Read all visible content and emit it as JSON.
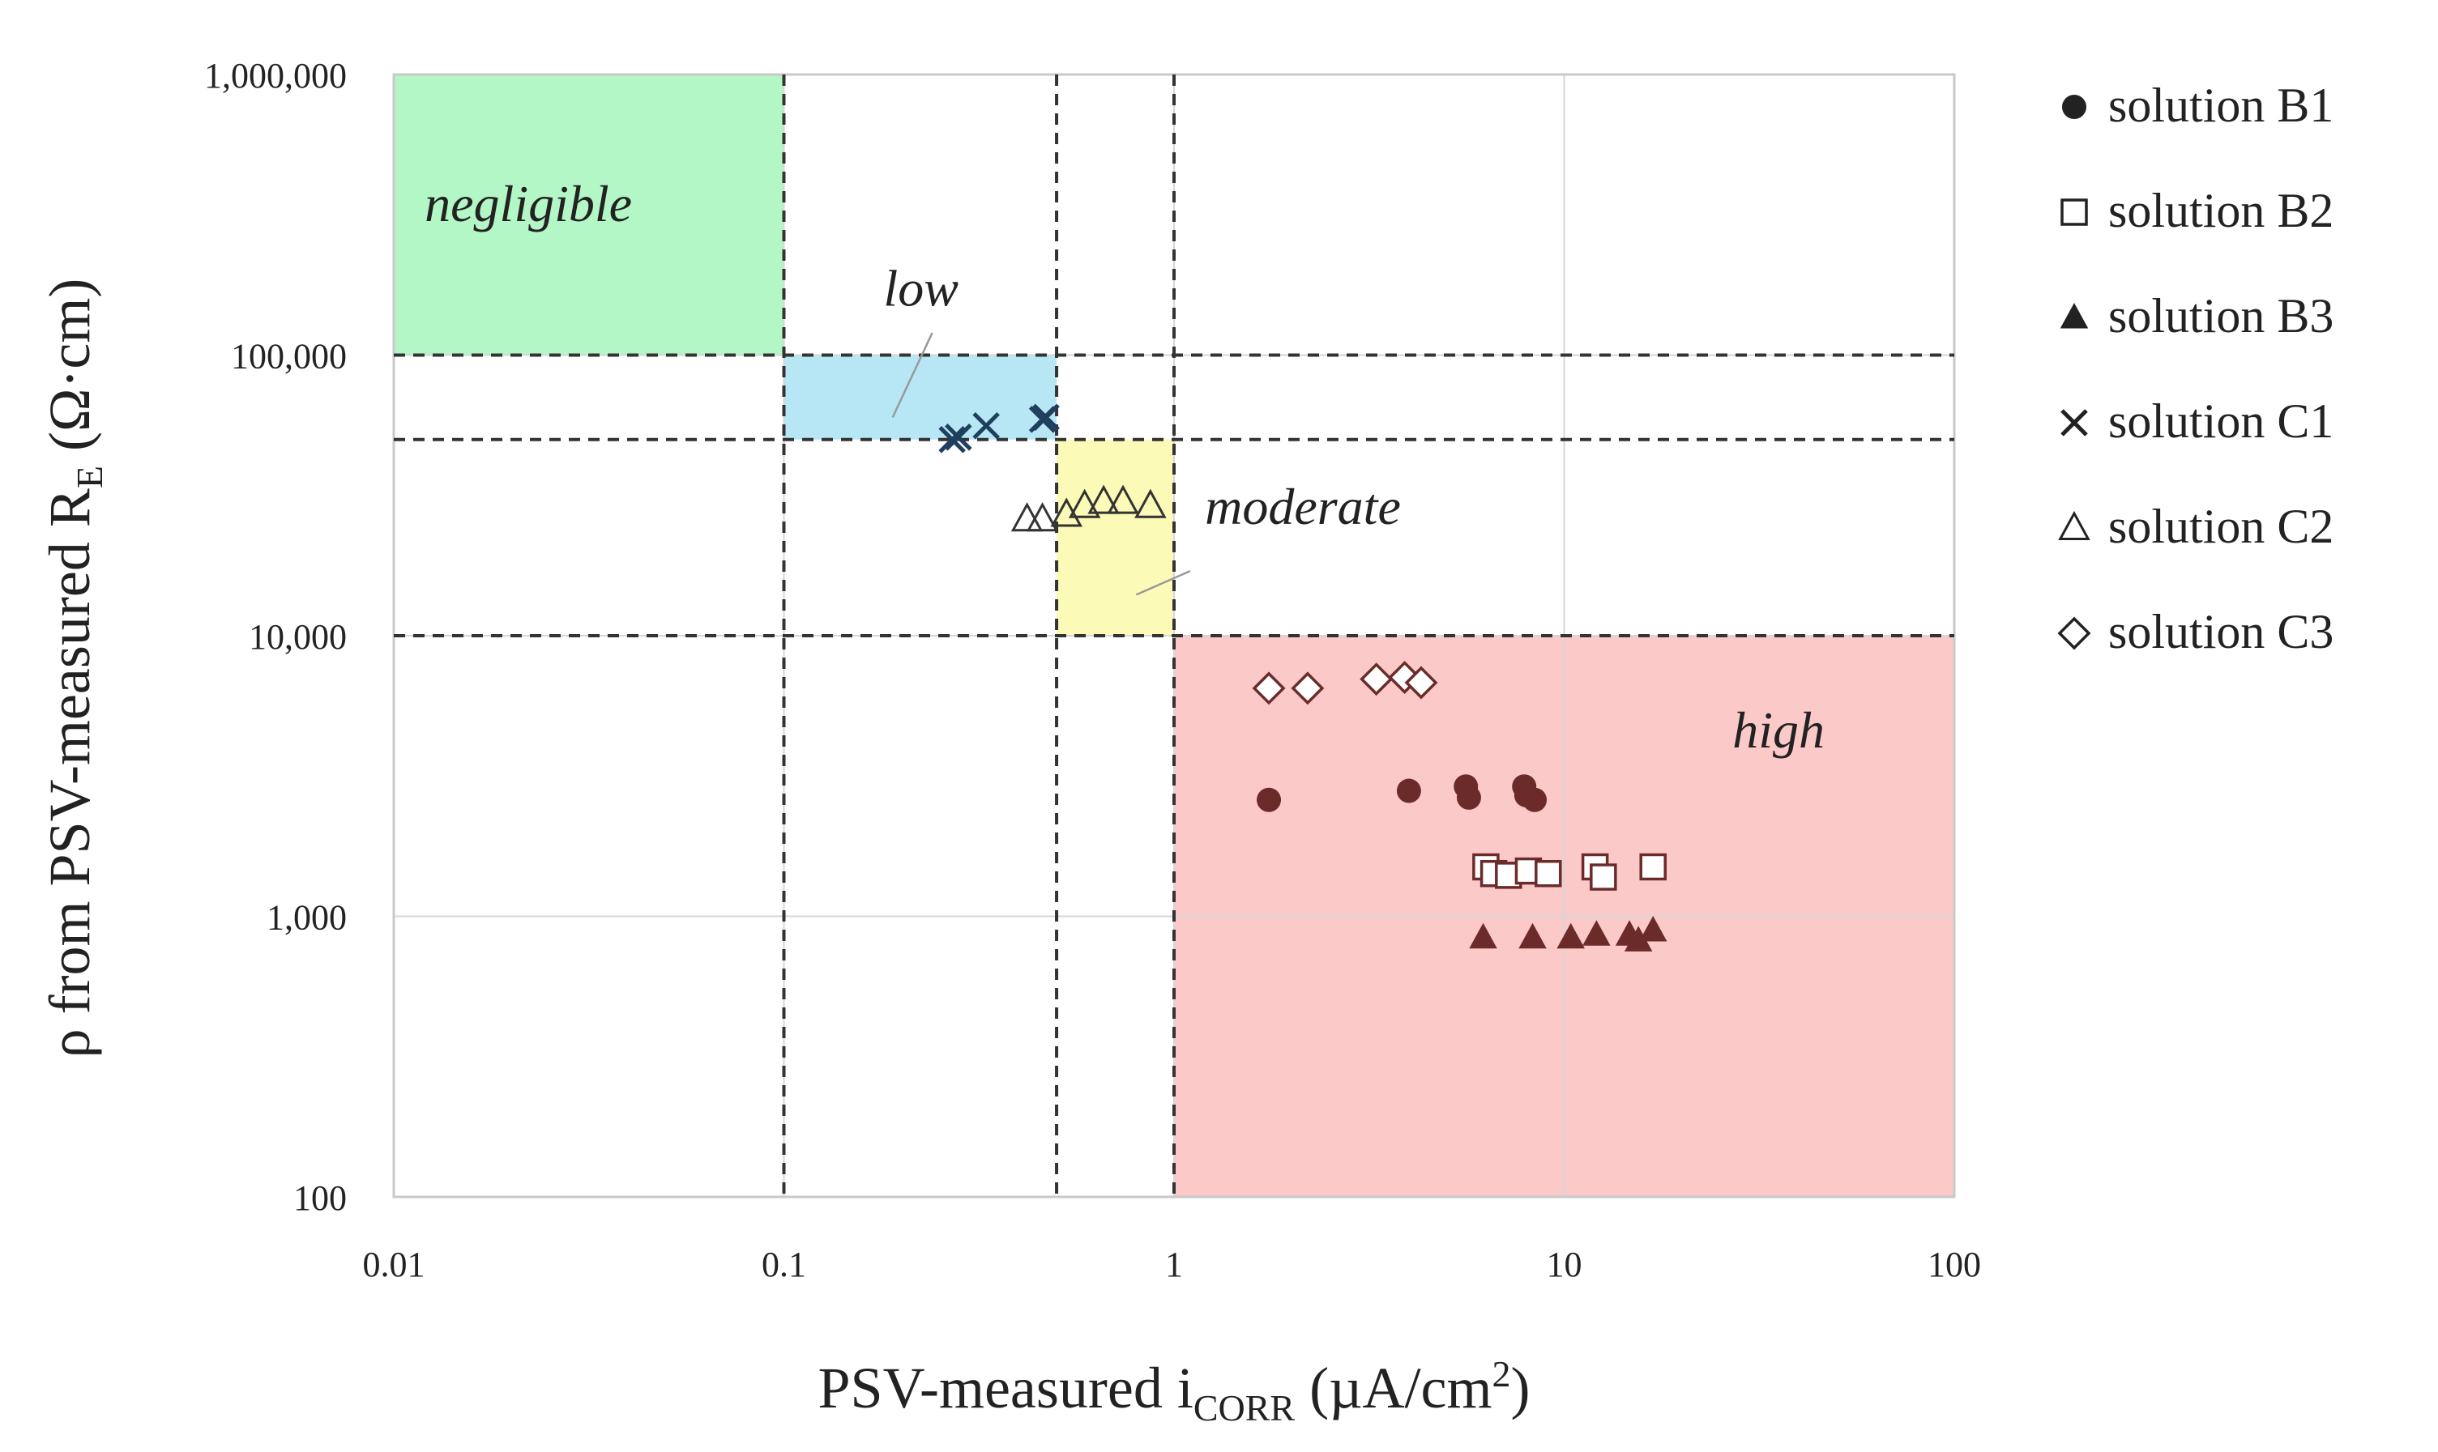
{
  "chart_data": {
    "type": "scatter",
    "x_scale": "log",
    "y_scale": "log",
    "xlim": [
      0.01,
      100
    ],
    "ylim": [
      100,
      1000000
    ],
    "x_ticks": [
      {
        "value": 0.01,
        "label": "0.01"
      },
      {
        "value": 0.1,
        "label": "0.1"
      },
      {
        "value": 1,
        "label": "1"
      },
      {
        "value": 10,
        "label": "10"
      },
      {
        "value": 100,
        "label": "100"
      }
    ],
    "y_ticks": [
      {
        "value": 100,
        "label": "100"
      },
      {
        "value": 1000,
        "label": "1,000"
      },
      {
        "value": 10000,
        "label": "10,000"
      },
      {
        "value": 100000,
        "label": "100,000"
      },
      {
        "value": 1000000,
        "label": "1,000,000"
      }
    ],
    "xlabel": {
      "main": "PSV-measured i",
      "sub": "CORR",
      "tail": " (µA/cm",
      "sup": "2",
      "end": ")"
    },
    "ylabel": {
      "main": "ρ from PSV-measured R",
      "sub": "E",
      "tail": " (Ω·cm)"
    },
    "zones": [
      {
        "name": "negligible",
        "label": "negligible",
        "x": [
          0.01,
          0.1
        ],
        "y": [
          100000,
          1000000
        ],
        "color": "#b3f7c6",
        "label_at": [
          0.012,
          300000
        ]
      },
      {
        "name": "low",
        "label": "low",
        "x": [
          0.1,
          0.5
        ],
        "y": [
          50000,
          100000
        ],
        "color": "#b7e7f5",
        "label_at": [
          0.18,
          150000
        ],
        "pointer": [
          [
            0.24,
            120000
          ],
          [
            0.19,
            60000
          ]
        ]
      },
      {
        "name": "moderate",
        "label": "moderate",
        "x": [
          0.5,
          1
        ],
        "y": [
          10000,
          50000
        ],
        "color": "#fcfab7",
        "label_at": [
          1.2,
          25000
        ],
        "pointer": [
          [
            1.1,
            17000
          ],
          [
            0.8,
            14000
          ]
        ]
      },
      {
        "name": "high",
        "label": "high",
        "x": [
          1,
          100
        ],
        "y": [
          100,
          10000
        ],
        "color": "#fcc9c9",
        "label_at": [
          27,
          4000
        ]
      }
    ],
    "thresholds": {
      "x": [
        0.1,
        0.5,
        1
      ],
      "y": [
        10000,
        50000,
        100000
      ]
    },
    "series": [
      {
        "name": "solution B1",
        "marker": "circle",
        "color": "#6b2b2b",
        "points": [
          [
            1.75,
            2600
          ],
          [
            4.0,
            2800
          ],
          [
            5.6,
            2900
          ],
          [
            5.7,
            2650
          ],
          [
            7.9,
            2900
          ],
          [
            8.0,
            2700
          ],
          [
            8.4,
            2600
          ]
        ]
      },
      {
        "name": "solution B2",
        "marker": "square-open",
        "color": "#6b2b2b",
        "points": [
          [
            6.3,
            1500
          ],
          [
            6.6,
            1420
          ],
          [
            7.2,
            1400
          ],
          [
            8.1,
            1450
          ],
          [
            9.1,
            1420
          ],
          [
            12.0,
            1500
          ],
          [
            12.6,
            1380
          ],
          [
            16.9,
            1500
          ]
        ]
      },
      {
        "name": "solution B3",
        "marker": "triangle",
        "color": "#6b2b2b",
        "points": [
          [
            6.2,
            840
          ],
          [
            8.3,
            840
          ],
          [
            10.4,
            840
          ],
          [
            12.1,
            860
          ],
          [
            14.7,
            860
          ],
          [
            15.5,
            820
          ],
          [
            16.9,
            890
          ]
        ]
      },
      {
        "name": "solution C1",
        "marker": "x",
        "color": "#1f3f5f",
        "points": [
          [
            0.27,
            50000
          ],
          [
            0.28,
            51000
          ],
          [
            0.33,
            56000
          ],
          [
            0.46,
            59000
          ],
          [
            0.47,
            60000
          ]
        ]
      },
      {
        "name": "solution C2",
        "marker": "triangle-open",
        "color": "#333333",
        "points": [
          [
            0.42,
            26000
          ],
          [
            0.46,
            26000
          ],
          [
            0.53,
            27000
          ],
          [
            0.59,
            29000
          ],
          [
            0.66,
            30000
          ],
          [
            0.74,
            30000
          ],
          [
            0.87,
            29000
          ]
        ]
      },
      {
        "name": "solution C3",
        "marker": "diamond-open",
        "color": "#6b2b2b",
        "points": [
          [
            1.75,
            6500
          ],
          [
            2.2,
            6500
          ],
          [
            3.3,
            7000
          ],
          [
            3.9,
            7100
          ],
          [
            4.3,
            6800
          ]
        ]
      }
    ]
  }
}
